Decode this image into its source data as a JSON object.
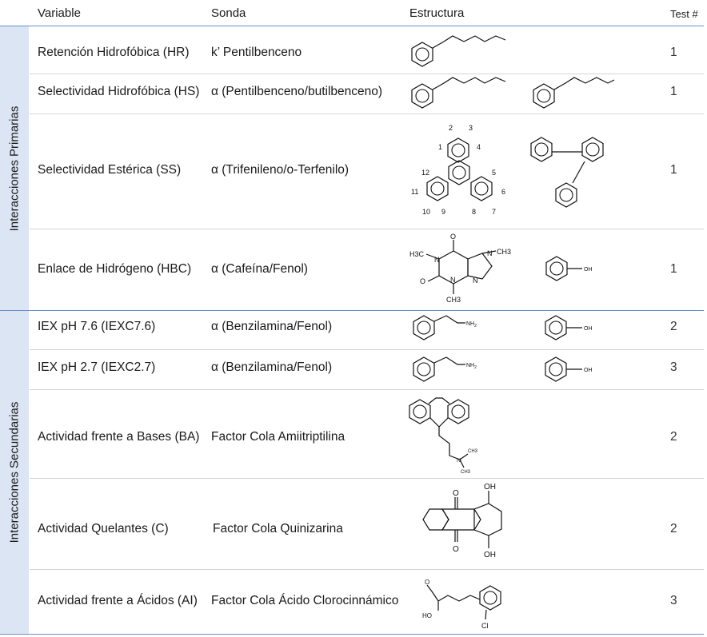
{
  "header": {
    "variable": "Variable",
    "probe": "Sonda",
    "structure": "Estructura",
    "test": "Test #"
  },
  "groups": {
    "primary": "Interacciones Primarias",
    "secondary": "Interacciones Secundarias"
  },
  "rows": [
    {
      "variable": "Retención Hidrofóbica (HR)",
      "probe": "k’ Pentilbenceno",
      "test": "1"
    },
    {
      "variable": "Selectividad Hidrofóbica (HS)",
      "probe": "α (Pentilbenceno/butilbenceno)",
      "test": "1"
    },
    {
      "variable": "Selectividad Estérica (SS)",
      "probe": "α (Trifenileno/o-Terfenilo)",
      "test": "1"
    },
    {
      "variable": "Enlace de Hidrógeno (HBC)",
      "probe": "α (Cafeína/Fenol)",
      "test": "1"
    },
    {
      "variable": "IEX pH 7.6 (IEXC7.6)",
      "probe": "α (Benzilamina/Fenol)",
      "test": "2"
    },
    {
      "variable": "IEX pH 2.7 (IEXC2.7)",
      "probe": "α (Benzilamina/Fenol)",
      "test": "3"
    },
    {
      "variable": "Actividad frente a Bases (BA)",
      "probe": "Factor Cola Amiitriptilina",
      "test": "2"
    },
    {
      "variable": "Actividad Quelantes (C)",
      "probe": "Factor Cola Quinizarina",
      "test": "2"
    },
    {
      "variable": "Actividad frente a Ácidos (AI)",
      "probe": "Factor Cola Ácido Clorocinnámico",
      "test": "3"
    }
  ],
  "structure_labels": {
    "triphenylene_numbers": [
      "1",
      "2",
      "3",
      "4",
      "5",
      "6",
      "7",
      "8",
      "9",
      "10",
      "11",
      "12"
    ],
    "oh": "OH",
    "nh2": "NH2",
    "nh2_base": "NH",
    "nh2_sub": "2",
    "n": "N",
    "o": "O",
    "h3c": "H3C",
    "ch3": "CH3",
    "ho": "HO",
    "cl": "Cl"
  }
}
